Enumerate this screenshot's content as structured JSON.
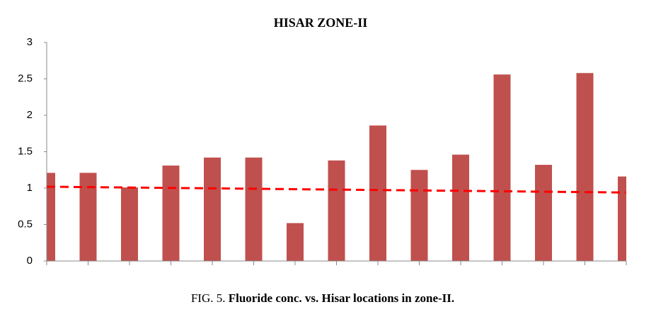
{
  "chart_data": {
    "type": "bar",
    "title": "HISAR ZONE-II",
    "caption_label": "FIG. 5.",
    "caption_text": "Fluoride conc. vs. Hisar locations in zone-II.",
    "categories": [
      null,
      null,
      null,
      null,
      null,
      null,
      null,
      null,
      null,
      null,
      null,
      null,
      null,
      null,
      null
    ],
    "values": [
      1.21,
      1.21,
      1.01,
      1.31,
      1.42,
      1.42,
      0.52,
      1.38,
      1.86,
      1.25,
      1.46,
      2.56,
      1.32,
      2.58,
      1.16
    ],
    "color": "#c0504d",
    "trendline": {
      "color": "#ff0000",
      "values": [
        1.02,
        0.94
      ]
    },
    "ylim": [
      0,
      3
    ],
    "yticks": [
      0,
      0.5,
      1,
      1.5,
      2,
      2.5,
      3
    ],
    "grid": false
  }
}
